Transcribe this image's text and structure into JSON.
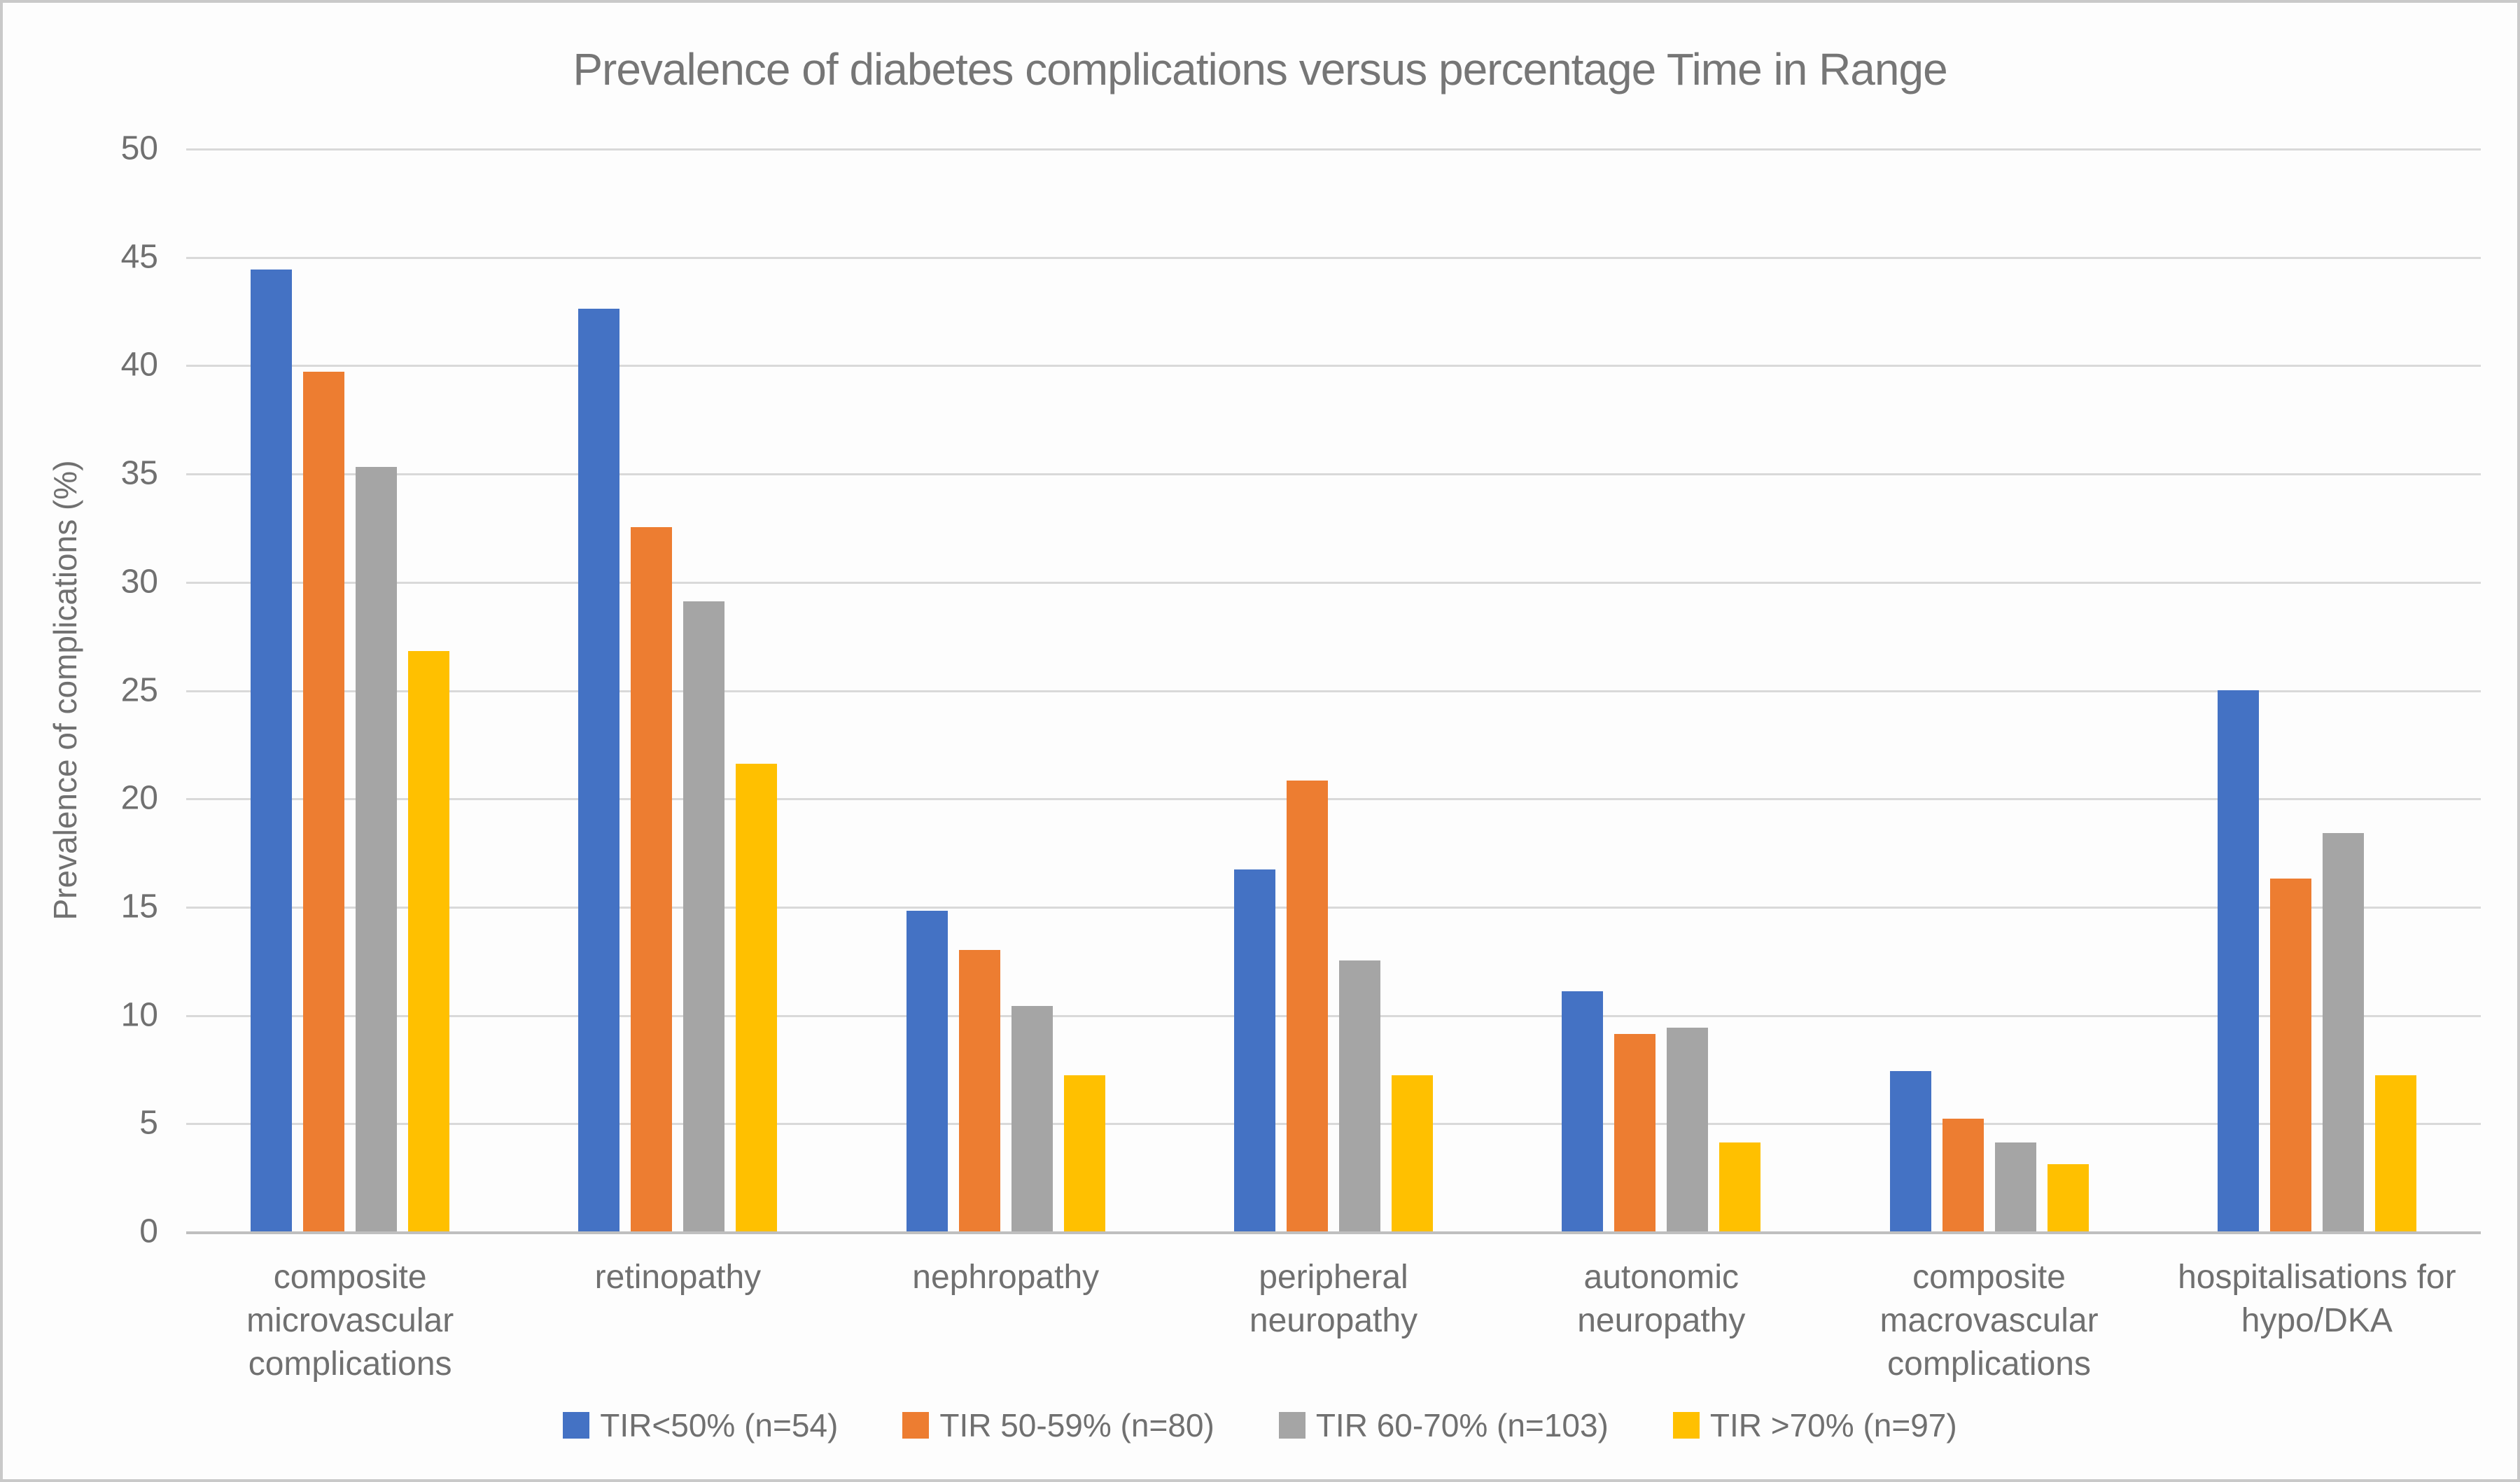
{
  "title": "Prevalence of diabetes complications versus percentage Time in Range",
  "y_axis": {
    "label": "Prevalence of complications (%)"
  },
  "chart_data": {
    "type": "bar",
    "title": "Prevalence of diabetes complications versus percentage Time in Range",
    "xlabel": "",
    "ylabel": "Prevalence of complications (%)",
    "ylim": [
      0,
      50
    ],
    "ytick_step": 5,
    "grid": true,
    "legend_position": "bottom",
    "categories": [
      {
        "label": "composite microvascular complications",
        "label_lines": [
          "composite",
          "microvascular",
          "complications"
        ]
      },
      {
        "label": "retinopathy",
        "label_lines": [
          "retinopathy"
        ]
      },
      {
        "label": "nephropathy",
        "label_lines": [
          "nephropathy"
        ]
      },
      {
        "label": "peripheral neuropathy",
        "label_lines": [
          "peripheral",
          "neuropathy"
        ]
      },
      {
        "label": "autonomic neuropathy",
        "label_lines": [
          "autonomic",
          "neuropathy"
        ]
      },
      {
        "label": "composite macrovascular complications",
        "label_lines": [
          "composite",
          "macrovascular",
          "complications"
        ]
      },
      {
        "label": "hospitalisations for hypo/DKA",
        "label_lines": [
          "hospitalisations for",
          "hypo/DKA"
        ]
      }
    ],
    "series": [
      {
        "name": "TIR<50% (n=54)",
        "color": "#4472C4",
        "values": [
          44.4,
          42.6,
          14.8,
          16.7,
          11.1,
          7.4,
          25.0
        ]
      },
      {
        "name": "TIR 50-59% (n=80)",
        "color": "#ED7D31",
        "values": [
          39.7,
          32.5,
          13.0,
          20.8,
          9.1,
          5.2,
          16.3
        ]
      },
      {
        "name": "TIR 60-70% (n=103)",
        "color": "#A5A5A5",
        "values": [
          35.3,
          29.1,
          10.4,
          12.5,
          9.4,
          4.1,
          18.4
        ]
      },
      {
        "name": "TIR >70% (n=97)",
        "color": "#FFC000",
        "values": [
          26.8,
          21.6,
          7.2,
          7.2,
          4.1,
          3.1,
          7.2
        ]
      }
    ],
    "colors": {
      "gridline": "#d9d9d9",
      "axis_line": "#bfbfbf",
      "text": "#707070",
      "title_text": "#767676"
    }
  }
}
